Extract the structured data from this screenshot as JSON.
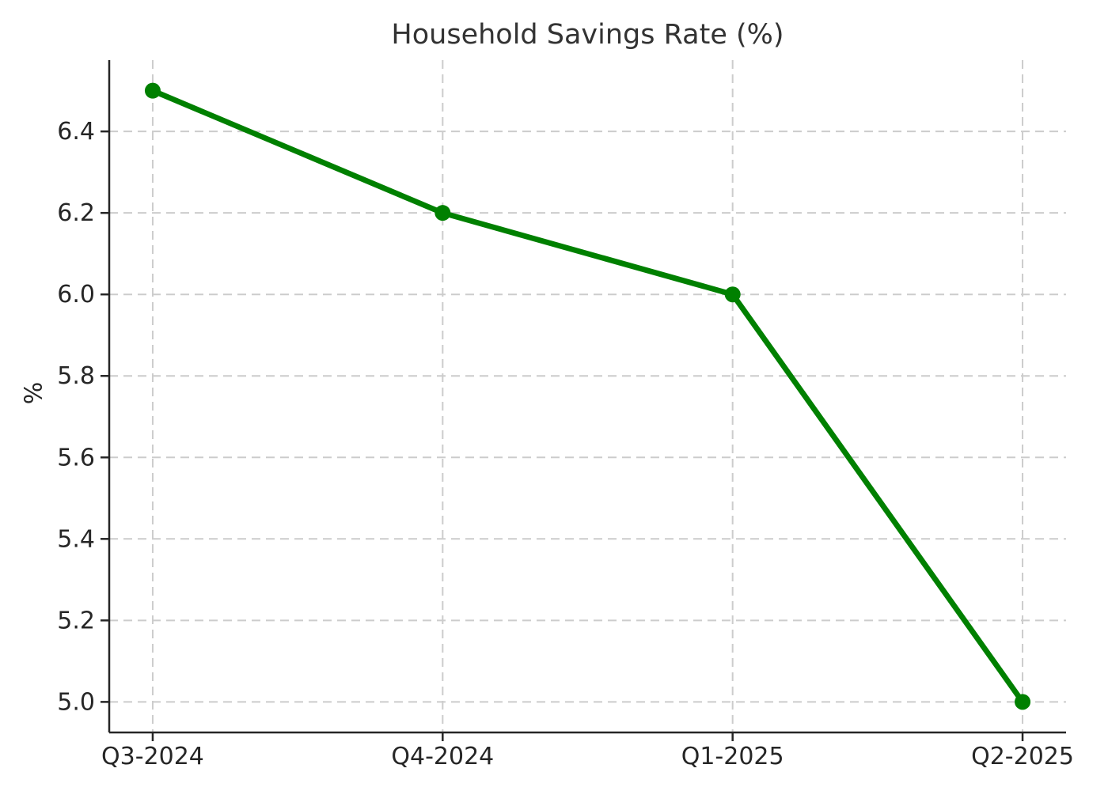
{
  "chart_data": {
    "type": "line",
    "title": "Household Savings Rate (%)",
    "xlabel": "",
    "ylabel": "%",
    "categories": [
      "Q3-2024",
      "Q4-2024",
      "Q1-2025",
      "Q2-2025"
    ],
    "series": [
      {
        "name": "Household Savings Rate",
        "values": [
          6.5,
          6.2,
          6.0,
          5.0
        ]
      }
    ],
    "yticks": [
      5.0,
      5.2,
      5.4,
      5.6,
      5.8,
      6.0,
      6.2,
      6.4
    ],
    "ylim": [
      4.925,
      6.575
    ],
    "xlim": [
      -0.15,
      3.15
    ],
    "grid": true,
    "grid_style": "dashed",
    "legend": "none",
    "marker": "circle",
    "colors": {
      "line": "#008000",
      "marker": "#008000",
      "grid": "#cccccc",
      "axis": "#262626",
      "tick_text": "#262626",
      "title_text": "#333333",
      "background": "#ffffff"
    }
  }
}
